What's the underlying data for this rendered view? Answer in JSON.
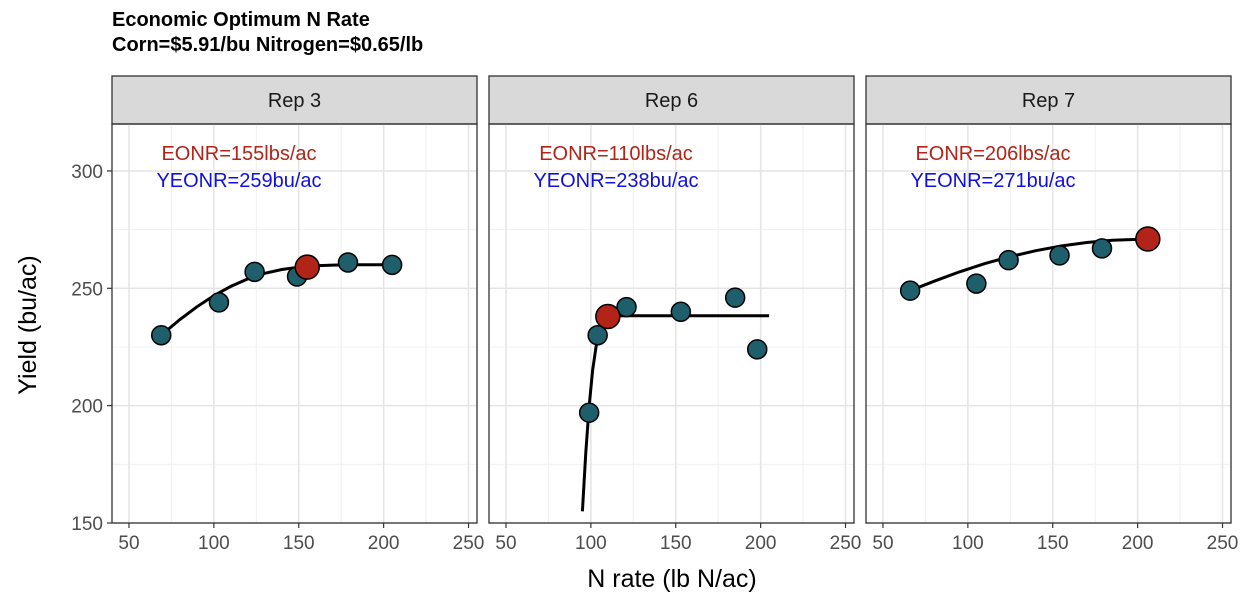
{
  "chart_data": {
    "type": "scatter",
    "title": "Economic Optimum N Rate",
    "subtitle": "Corn=$5.91/bu  Nitrogen=$0.65/lb",
    "xlabel": "N rate (lb N/ac)",
    "ylabel": "Yield (bu/ac)",
    "xlim": [
      40,
      255
    ],
    "ylim": [
      150,
      320
    ],
    "xticks": [
      50,
      100,
      150,
      200,
      250
    ],
    "yticks": [
      150,
      200,
      250,
      300
    ],
    "grid": true,
    "legend": "none",
    "colors": {
      "point_fill": "#1f5f6b",
      "eonr_fill": "#b22418",
      "curve": "#000000",
      "eonr_text": "#b22418",
      "yeonr_text": "#1010e0",
      "strip_bg": "#d9d9d9"
    },
    "panels": [
      {
        "label": "Rep 3",
        "eonr_label": "EONR=155lbs/ac",
        "yeonr_label": "YEONR=259bu/ac",
        "points": [
          {
            "x": 69,
            "y": 230
          },
          {
            "x": 103,
            "y": 244
          },
          {
            "x": 124,
            "y": 257
          },
          {
            "x": 149,
            "y": 255
          },
          {
            "x": 179,
            "y": 261
          },
          {
            "x": 205,
            "y": 260
          }
        ],
        "eonr_point": {
          "x": 155,
          "y": 259
        },
        "curve": [
          [
            69,
            230
          ],
          [
            80,
            236.7
          ],
          [
            90,
            242.1
          ],
          [
            100,
            246.9
          ],
          [
            110,
            250.8
          ],
          [
            120,
            254.0
          ],
          [
            130,
            256.4
          ],
          [
            140,
            258.0
          ],
          [
            150,
            259.0
          ],
          [
            160,
            259.6
          ],
          [
            170,
            259.9
          ],
          [
            180,
            260.0
          ],
          [
            205,
            260.0
          ]
        ]
      },
      {
        "label": "Rep 6",
        "eonr_label": "EONR=110lbs/ac",
        "yeonr_label": "YEONR=238bu/ac",
        "points": [
          {
            "x": 99,
            "y": 197
          },
          {
            "x": 104,
            "y": 230
          },
          {
            "x": 121,
            "y": 242
          },
          {
            "x": 153,
            "y": 240
          },
          {
            "x": 185,
            "y": 246
          },
          {
            "x": 198,
            "y": 224
          }
        ],
        "eonr_point": {
          "x": 110,
          "y": 238
        },
        "curve": [
          [
            95,
            155
          ],
          [
            97,
            180
          ],
          [
            99,
            200
          ],
          [
            101,
            215
          ],
          [
            103,
            225
          ],
          [
            105,
            231
          ],
          [
            107,
            235
          ],
          [
            110,
            237.5
          ],
          [
            115,
            238.2
          ],
          [
            120,
            238.3
          ],
          [
            205,
            238.3
          ]
        ]
      },
      {
        "label": "Rep 7",
        "eonr_label": "EONR=206lbs/ac",
        "yeonr_label": "YEONR=271bu/ac",
        "points": [
          {
            "x": 66,
            "y": 249
          },
          {
            "x": 105,
            "y": 252
          },
          {
            "x": 124,
            "y": 262
          },
          {
            "x": 154,
            "y": 264
          },
          {
            "x": 179,
            "y": 267
          },
          {
            "x": 206,
            "y": 271
          }
        ],
        "eonr_point": {
          "x": 206,
          "y": 271
        },
        "curve": [
          [
            66,
            249
          ],
          [
            80,
            253
          ],
          [
            95,
            257
          ],
          [
            110,
            260.5
          ],
          [
            125,
            263.5
          ],
          [
            140,
            266
          ],
          [
            155,
            268
          ],
          [
            170,
            269.5
          ],
          [
            185,
            270.5
          ],
          [
            206,
            271
          ]
        ]
      }
    ]
  }
}
